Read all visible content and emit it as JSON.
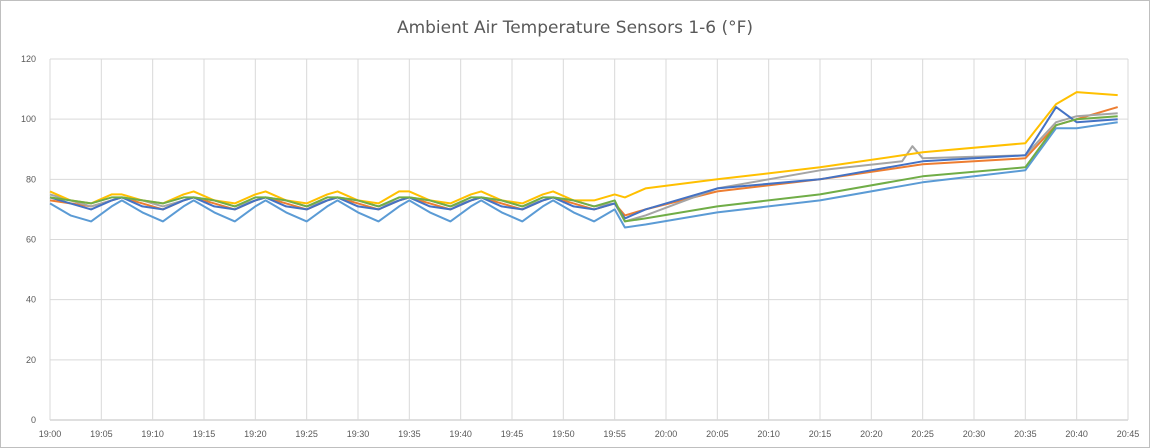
{
  "chart_data": {
    "type": "line",
    "title": "Ambient Air Temperature Sensors 1-6 (°F)",
    "xlabel": "",
    "ylabel": "",
    "ylim": [
      0,
      120
    ],
    "yticks": [
      "0",
      "20",
      "40",
      "60",
      "80",
      "100",
      "120"
    ],
    "xlim": [
      "19:00",
      "20:45"
    ],
    "xticks": [
      "19:00",
      "19:05",
      "19:10",
      "19:15",
      "19:20",
      "19:25",
      "19:30",
      "19:35",
      "19:40",
      "19:45",
      "19:50",
      "19:55",
      "20:00",
      "20:05",
      "20:10",
      "20:15",
      "20:20",
      "20:25",
      "20:30",
      "20:35",
      "20:40",
      "20:45"
    ],
    "grid": true,
    "legend": "none",
    "series": [
      {
        "color": "#5b9bd5",
        "points": [
          [
            "19:00",
            72
          ],
          [
            "19:02",
            68
          ],
          [
            "19:04",
            66
          ],
          [
            "19:06",
            71
          ],
          [
            "19:07",
            73
          ],
          [
            "19:09",
            69
          ],
          [
            "19:11",
            66
          ],
          [
            "19:13",
            71
          ],
          [
            "19:14",
            73
          ],
          [
            "19:16",
            69
          ],
          [
            "19:18",
            66
          ],
          [
            "19:20",
            71
          ],
          [
            "19:21",
            73
          ],
          [
            "19:23",
            69
          ],
          [
            "19:25",
            66
          ],
          [
            "19:27",
            71
          ],
          [
            "19:28",
            73
          ],
          [
            "19:30",
            69
          ],
          [
            "19:32",
            66
          ],
          [
            "19:34",
            71
          ],
          [
            "19:35",
            73
          ],
          [
            "19:37",
            69
          ],
          [
            "19:39",
            66
          ],
          [
            "19:41",
            71
          ],
          [
            "19:42",
            73
          ],
          [
            "19:44",
            69
          ],
          [
            "19:46",
            66
          ],
          [
            "19:48",
            71
          ],
          [
            "19:49",
            73
          ],
          [
            "19:51",
            69
          ],
          [
            "19:53",
            66
          ],
          [
            "19:55",
            70
          ],
          [
            "19:56",
            64
          ],
          [
            "19:58",
            65
          ],
          [
            "20:05",
            69
          ],
          [
            "20:15",
            73
          ],
          [
            "20:25",
            79
          ],
          [
            "20:35",
            83
          ],
          [
            "20:38",
            97
          ],
          [
            "20:40",
            97
          ],
          [
            "20:44",
            99
          ]
        ]
      },
      {
        "color": "#ed7d31",
        "points": [
          [
            "19:00",
            73
          ],
          [
            "19:02",
            72
          ],
          [
            "19:04",
            71
          ],
          [
            "19:06",
            73
          ],
          [
            "19:07",
            74
          ],
          [
            "19:09",
            72
          ],
          [
            "19:11",
            70
          ],
          [
            "19:13",
            73
          ],
          [
            "19:14",
            74
          ],
          [
            "19:16",
            72
          ],
          [
            "19:18",
            70
          ],
          [
            "19:20",
            73
          ],
          [
            "19:21",
            74
          ],
          [
            "19:23",
            72
          ],
          [
            "19:25",
            70
          ],
          [
            "19:27",
            73
          ],
          [
            "19:28",
            74
          ],
          [
            "19:30",
            72
          ],
          [
            "19:32",
            70
          ],
          [
            "19:34",
            73
          ],
          [
            "19:35",
            74
          ],
          [
            "19:37",
            72
          ],
          [
            "19:39",
            70
          ],
          [
            "19:41",
            73
          ],
          [
            "19:42",
            74
          ],
          [
            "19:44",
            72
          ],
          [
            "19:46",
            70
          ],
          [
            "19:48",
            73
          ],
          [
            "19:49",
            74
          ],
          [
            "19:51",
            72
          ],
          [
            "19:53",
            70
          ],
          [
            "19:55",
            72
          ],
          [
            "19:56",
            68
          ],
          [
            "19:58",
            70
          ],
          [
            "20:05",
            76
          ],
          [
            "20:15",
            80
          ],
          [
            "20:25",
            85
          ],
          [
            "20:35",
            87
          ],
          [
            "20:38",
            98
          ],
          [
            "20:40",
            100
          ],
          [
            "20:44",
            104
          ]
        ]
      },
      {
        "color": "#a5a5a5",
        "points": [
          [
            "19:00",
            75
          ],
          [
            "19:02",
            73
          ],
          [
            "19:04",
            71
          ],
          [
            "19:06",
            73
          ],
          [
            "19:07",
            74
          ],
          [
            "19:09",
            73
          ],
          [
            "19:11",
            71
          ],
          [
            "19:13",
            73
          ],
          [
            "19:14",
            74
          ],
          [
            "19:16",
            73
          ],
          [
            "19:18",
            71
          ],
          [
            "19:20",
            73
          ],
          [
            "19:21",
            74
          ],
          [
            "19:23",
            73
          ],
          [
            "19:25",
            71
          ],
          [
            "19:27",
            73
          ],
          [
            "19:28",
            74
          ],
          [
            "19:30",
            73
          ],
          [
            "19:32",
            71
          ],
          [
            "19:34",
            73
          ],
          [
            "19:35",
            74
          ],
          [
            "19:37",
            73
          ],
          [
            "19:39",
            71
          ],
          [
            "19:41",
            73
          ],
          [
            "19:42",
            74
          ],
          [
            "19:44",
            73
          ],
          [
            "19:46",
            71
          ],
          [
            "19:48",
            73
          ],
          [
            "19:49",
            74
          ],
          [
            "19:51",
            73
          ],
          [
            "19:53",
            71
          ],
          [
            "19:55",
            72
          ],
          [
            "19:56",
            66
          ],
          [
            "19:58",
            68
          ],
          [
            "20:05",
            77
          ],
          [
            "20:15",
            83
          ],
          [
            "20:23",
            86
          ],
          [
            "20:24",
            91
          ],
          [
            "20:25",
            87
          ],
          [
            "20:35",
            88
          ],
          [
            "20:38",
            99
          ],
          [
            "20:40",
            101
          ],
          [
            "20:44",
            102
          ]
        ]
      },
      {
        "color": "#ffc000",
        "points": [
          [
            "19:00",
            76
          ],
          [
            "19:02",
            73
          ],
          [
            "19:04",
            72
          ],
          [
            "19:06",
            75
          ],
          [
            "19:07",
            75
          ],
          [
            "19:09",
            73
          ],
          [
            "19:11",
            72
          ],
          [
            "19:13",
            75
          ],
          [
            "19:14",
            76
          ],
          [
            "19:16",
            73
          ],
          [
            "19:18",
            72
          ],
          [
            "19:20",
            75
          ],
          [
            "19:21",
            76
          ],
          [
            "19:23",
            73
          ],
          [
            "19:25",
            72
          ],
          [
            "19:27",
            75
          ],
          [
            "19:28",
            76
          ],
          [
            "19:30",
            73
          ],
          [
            "19:32",
            72
          ],
          [
            "19:34",
            76
          ],
          [
            "19:35",
            76
          ],
          [
            "19:37",
            73
          ],
          [
            "19:39",
            72
          ],
          [
            "19:41",
            75
          ],
          [
            "19:42",
            76
          ],
          [
            "19:44",
            73
          ],
          [
            "19:46",
            72
          ],
          [
            "19:48",
            75
          ],
          [
            "19:49",
            76
          ],
          [
            "19:51",
            73
          ],
          [
            "19:53",
            73
          ],
          [
            "19:55",
            75
          ],
          [
            "19:56",
            74
          ],
          [
            "19:58",
            77
          ],
          [
            "20:05",
            80
          ],
          [
            "20:15",
            84
          ],
          [
            "20:25",
            89
          ],
          [
            "20:35",
            92
          ],
          [
            "20:38",
            105
          ],
          [
            "20:40",
            109
          ],
          [
            "20:44",
            108
          ]
        ]
      },
      {
        "color": "#4472c4",
        "points": [
          [
            "19:00",
            74
          ],
          [
            "19:02",
            72
          ],
          [
            "19:04",
            70
          ],
          [
            "19:06",
            73
          ],
          [
            "19:07",
            74
          ],
          [
            "19:09",
            71
          ],
          [
            "19:11",
            70
          ],
          [
            "19:13",
            73
          ],
          [
            "19:14",
            74
          ],
          [
            "19:16",
            71
          ],
          [
            "19:18",
            70
          ],
          [
            "19:20",
            73
          ],
          [
            "19:21",
            74
          ],
          [
            "19:23",
            71
          ],
          [
            "19:25",
            70
          ],
          [
            "19:27",
            73
          ],
          [
            "19:28",
            74
          ],
          [
            "19:30",
            71
          ],
          [
            "19:32",
            70
          ],
          [
            "19:34",
            73
          ],
          [
            "19:35",
            74
          ],
          [
            "19:37",
            71
          ],
          [
            "19:39",
            70
          ],
          [
            "19:41",
            73
          ],
          [
            "19:42",
            74
          ],
          [
            "19:44",
            71
          ],
          [
            "19:46",
            70
          ],
          [
            "19:48",
            73
          ],
          [
            "19:49",
            74
          ],
          [
            "19:51",
            71
          ],
          [
            "19:53",
            70
          ],
          [
            "19:55",
            72
          ],
          [
            "19:56",
            67
          ],
          [
            "19:58",
            70
          ],
          [
            "20:05",
            77
          ],
          [
            "20:15",
            80
          ],
          [
            "20:25",
            86
          ],
          [
            "20:35",
            88
          ],
          [
            "20:38",
            104
          ],
          [
            "20:40",
            99
          ],
          [
            "20:44",
            100
          ]
        ]
      },
      {
        "color": "#70ad47",
        "points": [
          [
            "19:00",
            74
          ],
          [
            "19:02",
            73
          ],
          [
            "19:04",
            72
          ],
          [
            "19:06",
            74
          ],
          [
            "19:07",
            74
          ],
          [
            "19:09",
            73
          ],
          [
            "19:11",
            72
          ],
          [
            "19:13",
            74
          ],
          [
            "19:14",
            74
          ],
          [
            "19:16",
            73
          ],
          [
            "19:18",
            71
          ],
          [
            "19:20",
            74
          ],
          [
            "19:21",
            74
          ],
          [
            "19:23",
            73
          ],
          [
            "19:25",
            71
          ],
          [
            "19:27",
            74
          ],
          [
            "19:28",
            74
          ],
          [
            "19:30",
            73
          ],
          [
            "19:32",
            71
          ],
          [
            "19:34",
            74
          ],
          [
            "19:35",
            74
          ],
          [
            "19:37",
            73
          ],
          [
            "19:39",
            71
          ],
          [
            "19:41",
            74
          ],
          [
            "19:42",
            74
          ],
          [
            "19:44",
            73
          ],
          [
            "19:46",
            71
          ],
          [
            "19:48",
            74
          ],
          [
            "19:49",
            74
          ],
          [
            "19:51",
            73
          ],
          [
            "19:53",
            71
          ],
          [
            "19:55",
            73
          ],
          [
            "19:56",
            66
          ],
          [
            "19:58",
            67
          ],
          [
            "20:05",
            71
          ],
          [
            "20:15",
            75
          ],
          [
            "20:25",
            81
          ],
          [
            "20:35",
            84
          ],
          [
            "20:38",
            98
          ],
          [
            "20:40",
            100
          ],
          [
            "20:44",
            101
          ]
        ]
      }
    ]
  }
}
